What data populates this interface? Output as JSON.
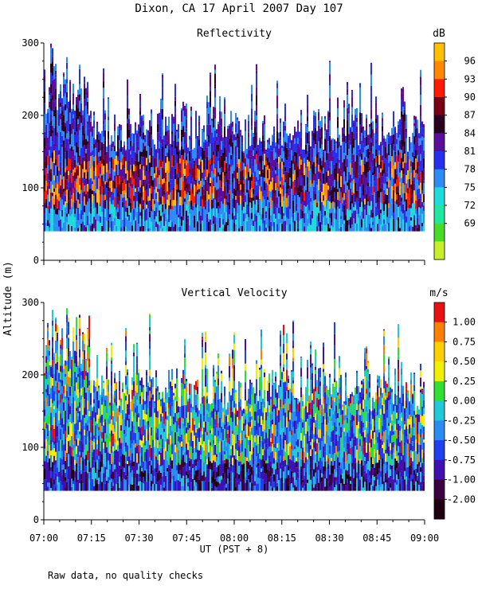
{
  "chart_data": {
    "type": "heatmap",
    "title": "Dixon, CA 17 April 2007  Day 107",
    "ylabel": "Altitude (m)",
    "xlabel": "UT  (PST + 8)",
    "x_ticks": [
      "07:00",
      "07:15",
      "07:30",
      "07:45",
      "08:00",
      "08:15",
      "08:30",
      "08:45",
      "09:00"
    ],
    "x_range_minutes": [
      0,
      120
    ],
    "footnote": "Raw data, no quality checks",
    "panels": [
      {
        "name": "reflectivity",
        "title": "Reflectivity",
        "unit": "dB",
        "ylim": [
          0,
          300
        ],
        "y_ticks": [
          "0",
          "100",
          "200",
          "300"
        ],
        "data_altitude_range_m": [
          40,
          300
        ],
        "colorbar_labels": [
          "96",
          "93",
          "90",
          "87",
          "84",
          "81",
          "78",
          "75",
          "72",
          "69"
        ],
        "colorbar_values": [
          96,
          93,
          90,
          87,
          84,
          81,
          78,
          75,
          72,
          69
        ],
        "colors": [
          "#ffc000",
          "#ff8800",
          "#ff1a00",
          "#7a0018",
          "#2a0020",
          "#5b0e9e",
          "#2830f0",
          "#2f8cf7",
          "#1edcdc",
          "#20e8a0",
          "#46dc28",
          "#c8f02a"
        ]
      },
      {
        "name": "vertical-velocity",
        "title": "Vertical Velocity",
        "unit": "m/s",
        "ylim": [
          0,
          300
        ],
        "y_ticks": [
          "0",
          "100",
          "200",
          "300"
        ],
        "data_altitude_range_m": [
          40,
          300
        ],
        "colorbar_labels": [
          "1.00",
          "0.75",
          "0.50",
          "0.25",
          "0.00",
          "-0.25",
          "-0.50",
          "-0.75",
          "-1.00",
          "-2.00"
        ],
        "colorbar_values": [
          1.0,
          0.75,
          0.5,
          0.25,
          0.0,
          -0.25,
          -0.5,
          -0.75,
          -1.0,
          -2.0
        ],
        "colors": [
          "#e81010",
          "#ff8000",
          "#ffd000",
          "#f0f000",
          "#30e030",
          "#20c8d8",
          "#2a8cf0",
          "#2040f0",
          "#4010b0",
          "#3a0040",
          "#200010"
        ]
      }
    ]
  }
}
